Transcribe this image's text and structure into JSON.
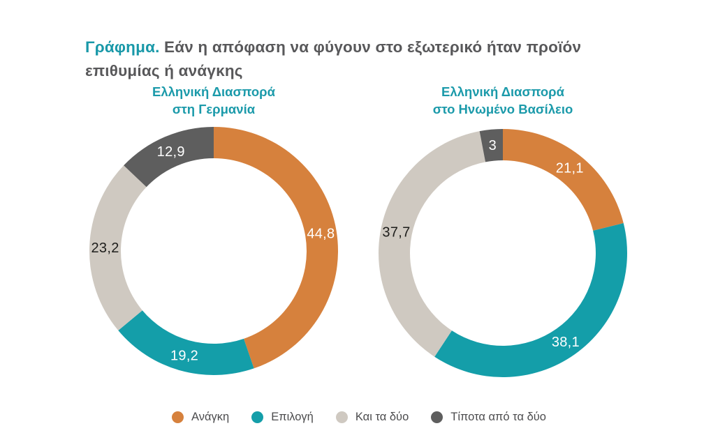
{
  "page": {
    "background": "#FFFFFF",
    "title": {
      "prefix": "Γράφημα.",
      "text": "Εάν η απόφαση να φύγουν στο εξωτερικό ήταν προϊόν επιθυμίας ή ανάγκης",
      "prefix_color": "#1898A8",
      "text_color": "#58585A"
    }
  },
  "categories": [
    {
      "key": "need",
      "label": "Ανάγκη",
      "color": "#D6813D",
      "value_text_color": "#FFFFFF"
    },
    {
      "key": "choice",
      "label": "Επιλογή",
      "color": "#149EA9",
      "value_text_color": "#FFFFFF"
    },
    {
      "key": "both",
      "label": "Και τα δύο",
      "color": "#CFC9C1",
      "value_text_color": "#1D1D1B"
    },
    {
      "key": "neither",
      "label": "Τίποτα από τα δύο",
      "color": "#5E5E5E",
      "value_text_color": "#FFFFFF"
    }
  ],
  "chart_data": [
    {
      "type": "pie",
      "subtype": "donut",
      "title": "Ελληνική Διασπορά στη Γερμανία",
      "title_lines": [
        "Ελληνική Διασπορά",
        "στη Γερμανία"
      ],
      "categories": [
        "Ανάγκη",
        "Επιλογή",
        "Και τα δύο",
        "Τίποτα από τα δύο"
      ],
      "values": [
        44.8,
        19.2,
        23.2,
        12.9
      ],
      "value_labels": [
        "44,8",
        "19,2",
        "23,2",
        "12,9"
      ],
      "start_angle_deg": 0,
      "direction": "clockwise",
      "legend_position": "bottom"
    },
    {
      "type": "pie",
      "subtype": "donut",
      "title": "Ελληνική Διασπορά στο Ηνωμένο Βασίλειο",
      "title_lines": [
        "Ελληνική Διασπορά",
        "στο Ηνωμένο Βασίλειο"
      ],
      "categories": [
        "Ανάγκη",
        "Επιλογή",
        "Και τα δύο",
        "Τίποτα από τα δύο"
      ],
      "values": [
        21.1,
        38.1,
        37.7,
        3
      ],
      "value_labels": [
        "21,1",
        "38,1",
        "37,7",
        "3"
      ],
      "start_angle_deg": 0,
      "direction": "clockwise",
      "legend_position": "bottom"
    }
  ]
}
